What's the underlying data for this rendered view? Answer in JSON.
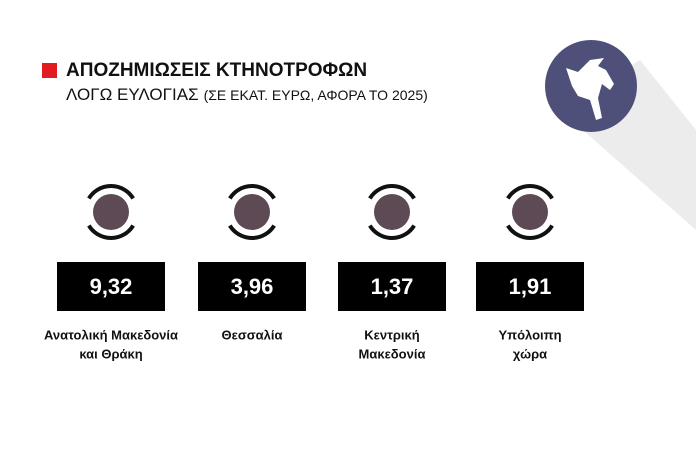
{
  "header": {
    "title": "ΑΠΟΖΗΜΙΩΣΕΙΣ ΚΤΗΝΟΤΡΟΦΩΝ",
    "subtitle": "ΛΟΓΩ ΕΥΛΟΓΙΑΣ",
    "subtitle_note": "(ΣΕ ΕΚΑΤ. ΕΥΡΩ, ΑΦΟΡΑ ΤΟ 2025)"
  },
  "items": [
    {
      "value": "9,32",
      "label": [
        "Ανατολική Μακεδονία",
        "και Θράκη"
      ]
    },
    {
      "value": "3,96",
      "label": [
        "Θεσσαλία"
      ]
    },
    {
      "value": "1,37",
      "label": [
        "Κεντρική",
        "Μακεδονία"
      ]
    },
    {
      "value": "1,91",
      "label": [
        "Υπόλοιπη",
        "χώρα"
      ]
    }
  ]
}
